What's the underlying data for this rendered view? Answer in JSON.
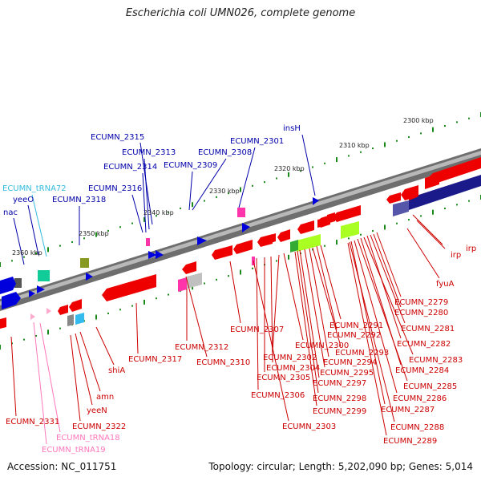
{
  "title": "Escherichia coli UMN026, complete genome",
  "accession_text": "Accession: NC_011751",
  "summary_text": "Topology: circular; Length: 5,202,090 bp; Genes: 5,014",
  "colors": {
    "backbone": "#8a8a8a",
    "top_label": "#0000aa",
    "tick_dots": "#1a8a1a",
    "forward_gene": "#0000dd",
    "reverse_gene": "#ee0000",
    "rrna_trna": "#ff55aa",
    "reverse_label": "#cc0000",
    "trna_label": "#ff77bb",
    "trna_cyan": "#33bbdd"
  },
  "scale_labels": [
    {
      "text": "2300 kbp"
    },
    {
      "text": "2310 kbp"
    },
    {
      "text": "2320 kbp"
    },
    {
      "text": "2330 kbp"
    },
    {
      "text": "2340 kbp"
    },
    {
      "text": "2350 kbp"
    },
    {
      "text": "2360 kbp"
    }
  ],
  "top_labels": [
    {
      "text": "insH"
    },
    {
      "text": "ECUMN_2301"
    },
    {
      "text": "ECUMN_2308"
    },
    {
      "text": "ECUMN_2309"
    },
    {
      "text": "ECUMN_2315"
    },
    {
      "text": "ECUMN_2313"
    },
    {
      "text": "ECUMN_2314"
    },
    {
      "text": "ECUMN_2316"
    },
    {
      "text": "ECUMN_2318"
    },
    {
      "text": "ECUMN_tRNA72"
    },
    {
      "text": "yeeO"
    },
    {
      "text": "nac"
    }
  ],
  "bottom_labels": [
    {
      "text": "irp"
    },
    {
      "text": "irp"
    },
    {
      "text": "fyuA"
    },
    {
      "text": "ECUMN_2279"
    },
    {
      "text": "ECUMN_2280"
    },
    {
      "text": "ECUMN_2281"
    },
    {
      "text": "ECUMN_2282"
    },
    {
      "text": "ECUMN_2283"
    },
    {
      "text": "ECUMN_2284"
    },
    {
      "text": "ECUMN_2285"
    },
    {
      "text": "ECUMN_2286"
    },
    {
      "text": "ECUMN_2287"
    },
    {
      "text": "ECUMN_2288"
    },
    {
      "text": "ECUMN_2289"
    },
    {
      "text": "ECUMN_2291"
    },
    {
      "text": "ECUMN_2292"
    },
    {
      "text": "ECUMN_2293"
    },
    {
      "text": "ECUMN_2294"
    },
    {
      "text": "ECUMN_2295"
    },
    {
      "text": "ECUMN_2297"
    },
    {
      "text": "ECUMN_2298"
    },
    {
      "text": "ECUMN_2299"
    },
    {
      "text": "ECUMN_2300"
    },
    {
      "text": "ECUMN_2302"
    },
    {
      "text": "ECUMN_2304"
    },
    {
      "text": "ECUMN_2305"
    },
    {
      "text": "ECUMN_2306"
    },
    {
      "text": "ECUMN_2303"
    },
    {
      "text": "ECUMN_2307"
    },
    {
      "text": "ECUMN_2310"
    },
    {
      "text": "ECUMN_2312"
    },
    {
      "text": "ECUMN_2317"
    },
    {
      "text": "shiA"
    },
    {
      "text": "amn"
    },
    {
      "text": "yeeN"
    },
    {
      "text": "ECUMN_2322"
    },
    {
      "text": "ECUMN_2331"
    },
    {
      "text": "ECUMN_tRNA18"
    },
    {
      "text": "ECUMN_tRNA19"
    }
  ]
}
